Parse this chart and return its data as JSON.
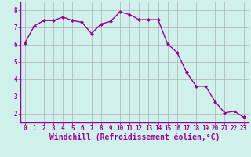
{
  "x": [
    0,
    1,
    2,
    3,
    4,
    5,
    6,
    7,
    8,
    9,
    10,
    11,
    12,
    13,
    14,
    15,
    16,
    17,
    18,
    19,
    20,
    21,
    22,
    23
  ],
  "y": [
    6.1,
    7.1,
    7.4,
    7.4,
    7.6,
    7.4,
    7.3,
    6.65,
    7.2,
    7.35,
    7.9,
    7.75,
    7.45,
    7.45,
    7.45,
    6.05,
    5.55,
    4.4,
    3.6,
    3.6,
    2.7,
    2.05,
    2.15,
    1.8
  ],
  "line_color": "#990099",
  "marker": "D",
  "marker_size": 2.0,
  "bg_color": "#cff0eb",
  "grid_color": "#b0b0b0",
  "xlabel": "Windchill (Refroidissement éolien,°C)",
  "xlabel_color": "#990099",
  "tick_color": "#990099",
  "axis_line_color": "#990099",
  "ylim": [
    1.5,
    8.5
  ],
  "xlim": [
    -0.5,
    23.5
  ],
  "yticks": [
    2,
    3,
    4,
    5,
    6,
    7,
    8
  ],
  "xticks": [
    0,
    1,
    2,
    3,
    4,
    5,
    6,
    7,
    8,
    9,
    10,
    11,
    12,
    13,
    14,
    15,
    16,
    17,
    18,
    19,
    20,
    21,
    22,
    23
  ],
  "xtick_labels": [
    "0",
    "1",
    "2",
    "3",
    "4",
    "5",
    "6",
    "7",
    "8",
    "9",
    "10",
    "11",
    "12",
    "13",
    "14",
    "15",
    "16",
    "17",
    "18",
    "19",
    "20",
    "21",
    "22",
    "23"
  ],
  "tick_fontsize": 5.5,
  "xlabel_fontsize": 7.0,
  "line_width": 1.0
}
